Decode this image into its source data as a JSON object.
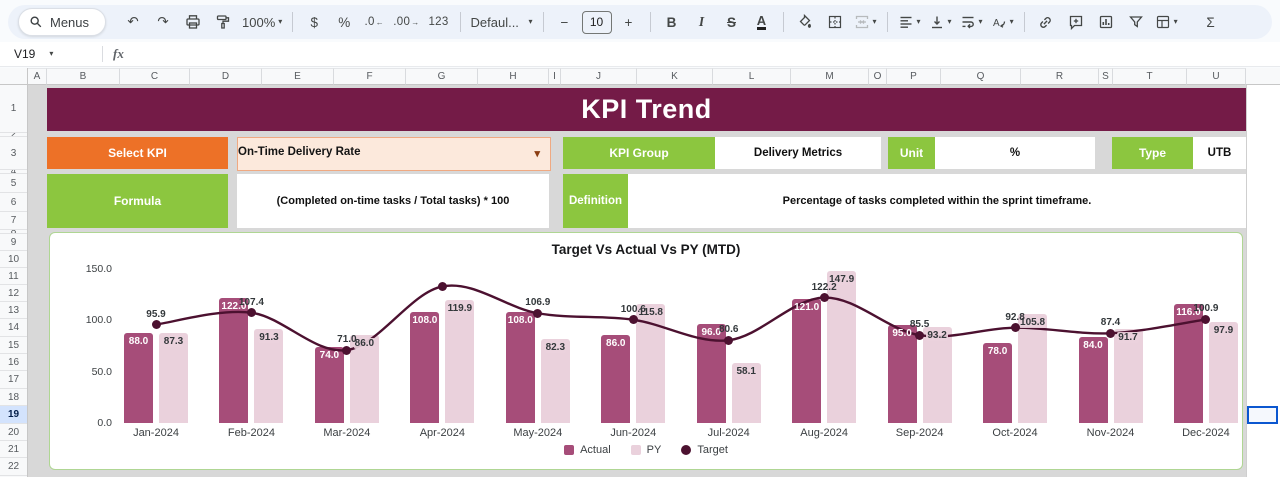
{
  "toolbar": {
    "menus_label": "Menus",
    "zoom": "100%",
    "currency": "$",
    "percent_format": "%",
    "decrease_decimal": ".0",
    "increase_decimal": ".00",
    "more_formats": "123",
    "font_name": "Defaul...",
    "decrease_font": "−",
    "font_size": "10",
    "increase_font": "+",
    "bold": "B",
    "italic": "I",
    "strikethrough": "S",
    "text_color": "A",
    "functions": "Σ"
  },
  "icons": {
    "undo": "↶",
    "redo": "↷",
    "caret": "▾",
    "arrow_left": "←",
    "arrow_right": "→"
  },
  "formula_bar": {
    "cell_reference": "V19",
    "fx_label": "fx"
  },
  "grid": {
    "column_headers": [
      "A",
      "B",
      "C",
      "D",
      "E",
      "F",
      "G",
      "H",
      "I",
      "J",
      "K",
      "L",
      "M",
      "O",
      "P",
      "Q",
      "R",
      "S",
      "T",
      "U"
    ],
    "row_numbers": [
      "1",
      "2",
      "3",
      "4",
      "5",
      "6",
      "7",
      "8",
      "9",
      "10",
      "11",
      "12",
      "13",
      "14",
      "15",
      "16",
      "17",
      "18",
      "19",
      "20",
      "21",
      "22"
    ],
    "selected_row": "19"
  },
  "kpi_panel": {
    "title": "KPI Trend",
    "select_kpi_label": "Select KPI",
    "selected_kpi": "On-Time Delivery Rate",
    "kpi_group_label": "KPI Group",
    "kpi_group_value": "Delivery Metrics",
    "unit_label": "Unit",
    "unit_value": "%",
    "type_label": "Type",
    "type_value": "UTB",
    "formula_label": "Formula",
    "formula_value": "(Completed on-time tasks / Total tasks) * 100",
    "definition_label": "Definition",
    "definition_value": "Percentage of tasks completed within the sprint timeframe."
  },
  "colors": {
    "banner": "#741B47",
    "orange": "#ED7127",
    "green": "#8CC63F",
    "peach": "#FCE9DC",
    "actual": "#A64D79",
    "py": "#EAD1DC",
    "target": "#4C1130"
  },
  "chart_data": {
    "type": "combo_bar_line",
    "title": "Target Vs Actual Vs PY (MTD)",
    "categories": [
      "Jan-2024",
      "Feb-2024",
      "Mar-2024",
      "Apr-2024",
      "May-2024",
      "Jun-2024",
      "Jul-2024",
      "Aug-2024",
      "Sep-2024",
      "Oct-2024",
      "Nov-2024",
      "Dec-2024"
    ],
    "series": [
      {
        "name": "Actual",
        "type": "bar",
        "color": "#A64D79",
        "values": [
          88.0,
          122.0,
          74.0,
          108.0,
          108.0,
          86.0,
          96.0,
          121.0,
          95.0,
          78.0,
          84.0,
          116.0
        ],
        "labels": [
          "88.0",
          "122.0",
          "74.0",
          "108.0",
          "108.0",
          "86.0",
          "96.0",
          "121.0",
          "95.0",
          "78.0",
          "84.0",
          "116.0"
        ]
      },
      {
        "name": "PY",
        "type": "bar",
        "color": "#EAD1DC",
        "values": [
          87.3,
          91.3,
          86.0,
          119.9,
          82.3,
          115.8,
          58.1,
          147.9,
          93.2,
          105.8,
          91.7,
          97.9
        ],
        "labels": [
          "87.3",
          "91.3",
          "86.0",
          "119.9",
          "82.3",
          "115.8",
          "58.1",
          "147.9",
          "93.2",
          "105.8",
          "91.7",
          "97.9"
        ]
      },
      {
        "name": "Target",
        "type": "line",
        "color": "#4C1130",
        "values": [
          95.9,
          107.4,
          71.0,
          133.0,
          106.9,
          100.6,
          80.6,
          122.2,
          85.5,
          92.8,
          87.4,
          100.9
        ],
        "labels": [
          "95.9",
          "107.4",
          "71.0",
          "",
          "106.9",
          "100.6",
          "80.6",
          "122.2",
          "85.5",
          "92.8",
          "87.4",
          "100.9"
        ]
      }
    ],
    "y_ticks": [
      "0.0",
      "50.0",
      "100.0",
      "150.0"
    ],
    "ylim": [
      0,
      150
    ],
    "grid": false,
    "legend": [
      "Actual",
      "PY",
      "Target"
    ],
    "legend_position": "bottom"
  }
}
